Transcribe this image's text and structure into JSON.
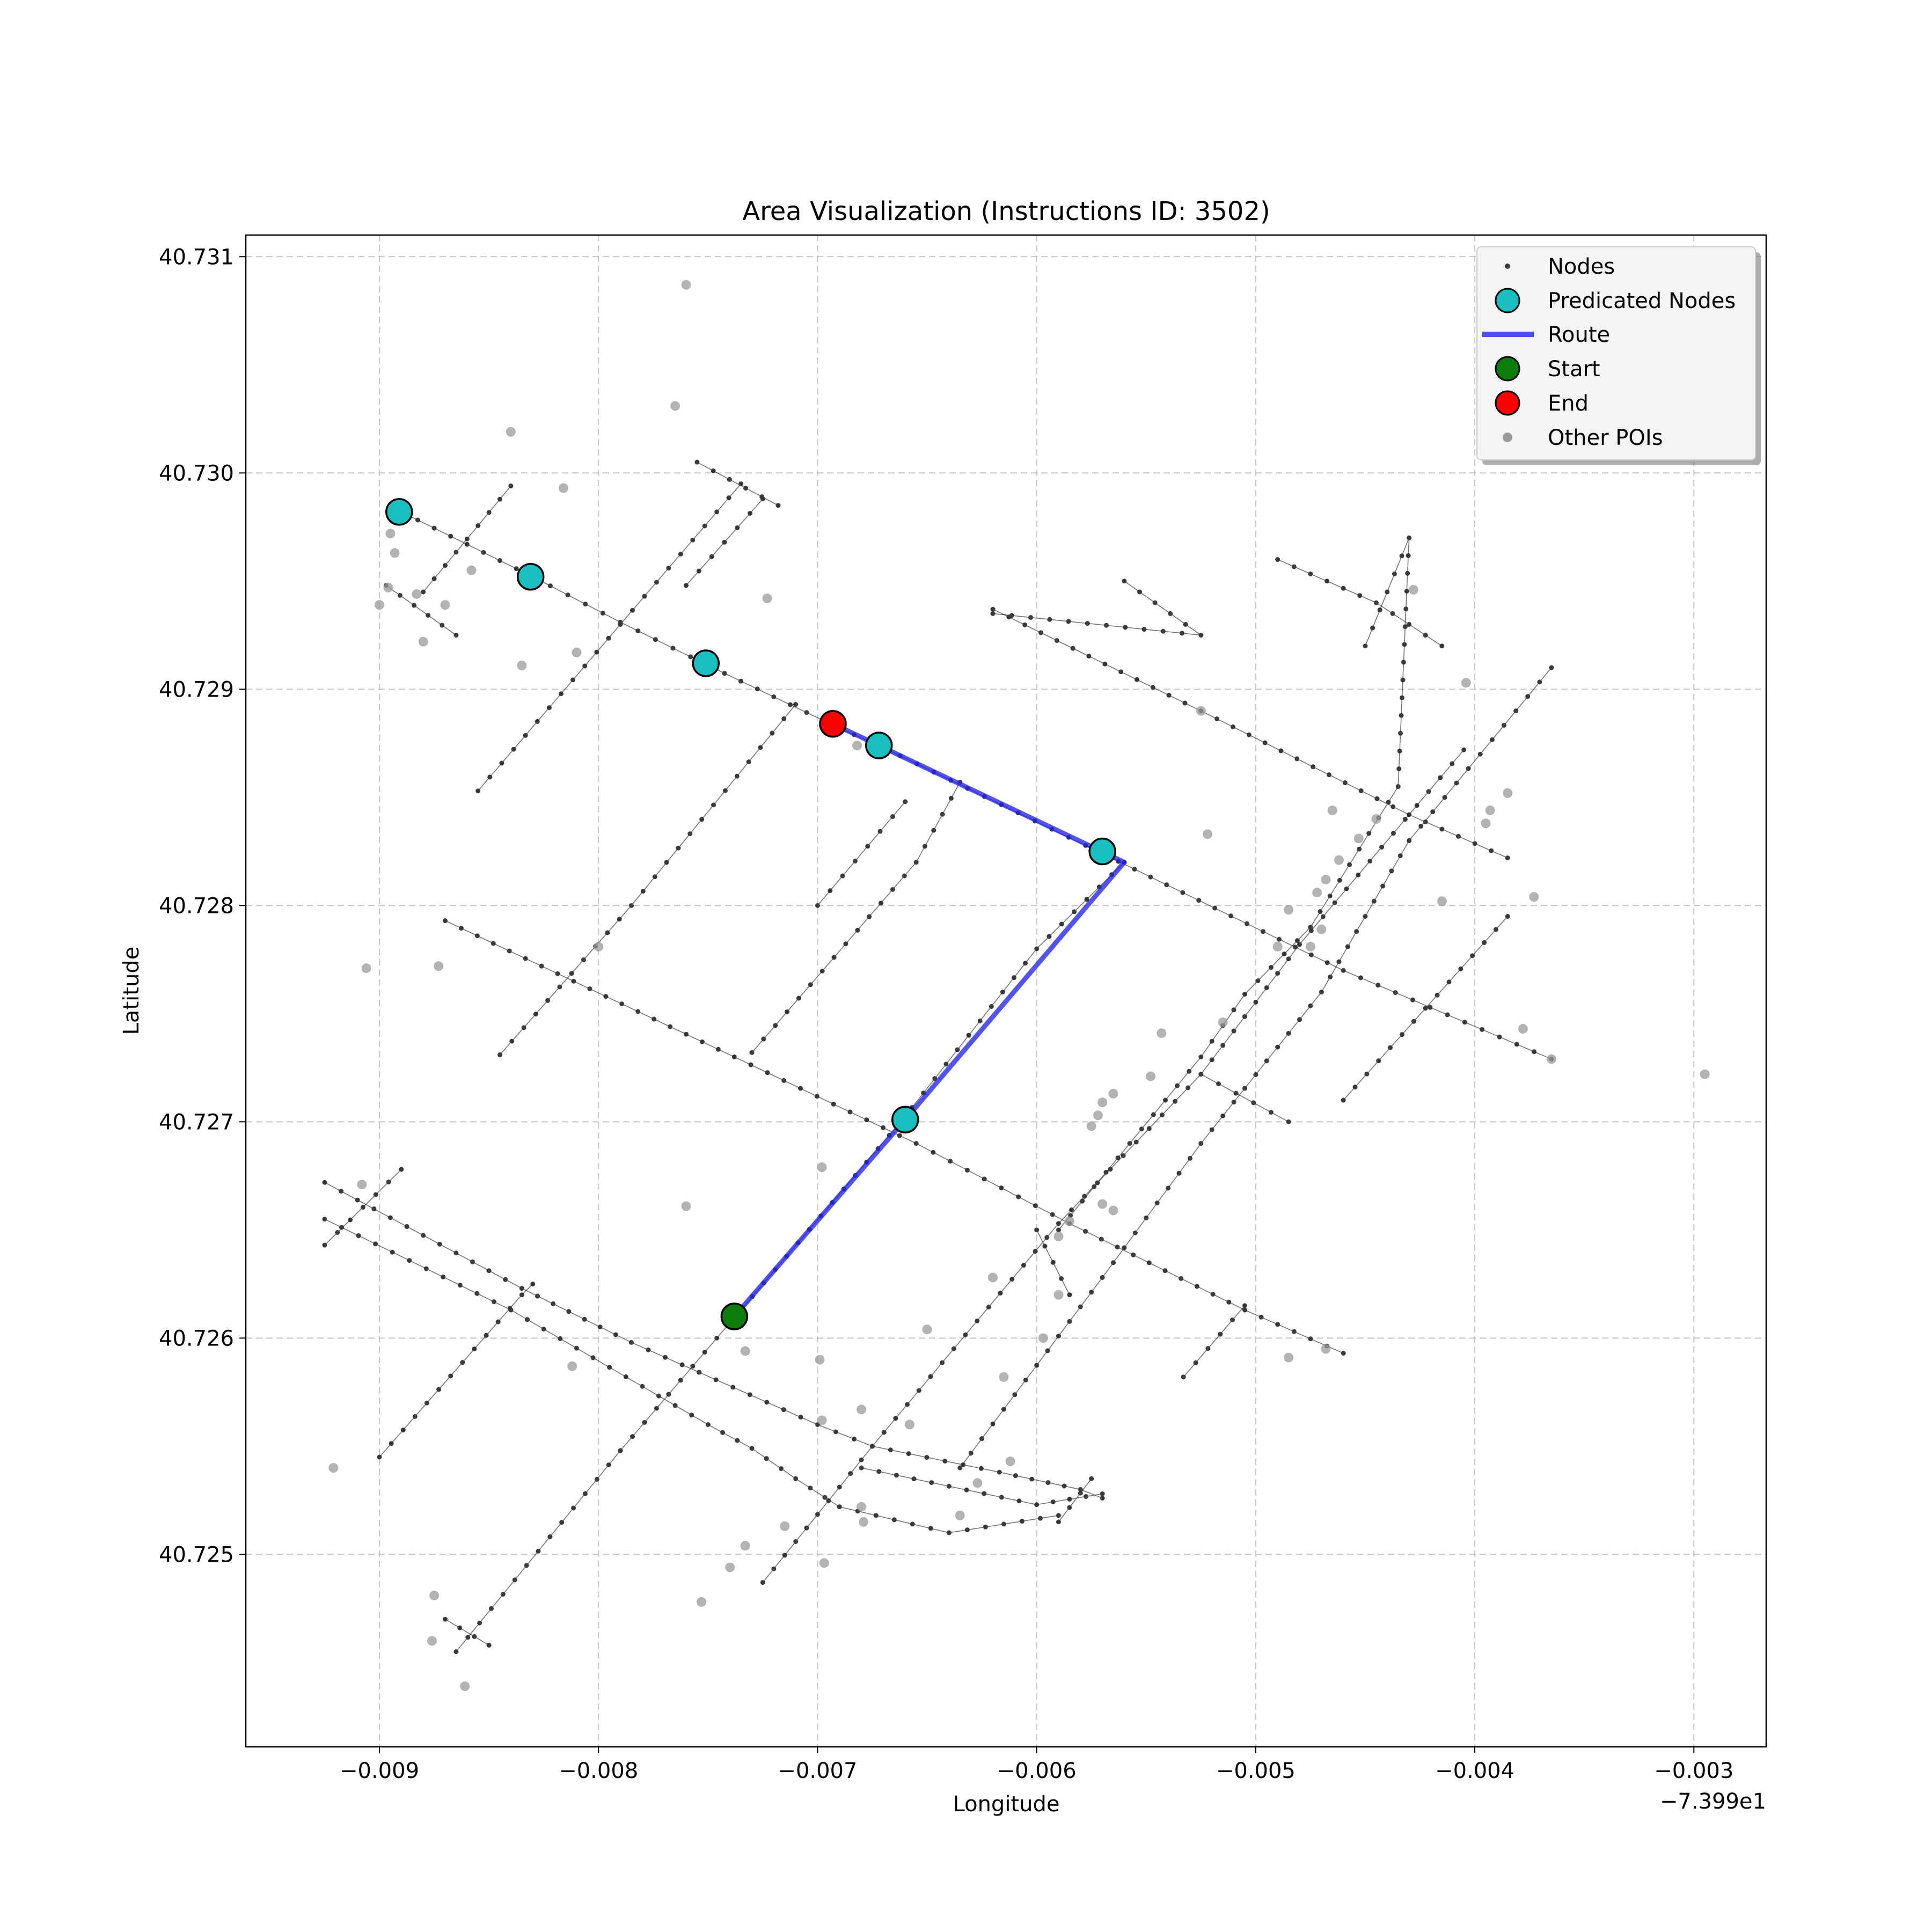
{
  "chart_data": {
    "type": "scatter",
    "title": "Area Visualization (Instructions ID: 3502)",
    "xlabel": "Longitude",
    "ylabel": "Latitude",
    "x_offset_label": "−7.399e1",
    "xlim": [
      -0.00961,
      -0.00267
    ],
    "ylim": [
      40.72411,
      40.7311
    ],
    "x_ticks": [
      -0.009,
      -0.008,
      -0.007,
      -0.006,
      -0.005,
      -0.004,
      -0.003
    ],
    "x_tick_labels": [
      "−0.009",
      "−0.008",
      "−0.007",
      "−0.006",
      "−0.005",
      "−0.004",
      "−0.003"
    ],
    "y_ticks": [
      40.725,
      40.726,
      40.727,
      40.728,
      40.729,
      40.73,
      40.731
    ],
    "y_tick_labels": [
      "40.725",
      "40.726",
      "40.727",
      "40.728",
      "40.729",
      "40.730",
      "40.731"
    ],
    "grid": true,
    "legend_position": "top-right",
    "legend": [
      "Nodes",
      "Predicated Nodes",
      "Route",
      "Start",
      "End",
      "Other POIs"
    ],
    "colors": {
      "nodes": "#3a3a3a",
      "predicated": "#17bfbf",
      "route": "#2222ee",
      "start": "#0a7d0a",
      "end": "#ff0000",
      "poi": "#9a9a9a"
    },
    "streets": [
      [
        [
          -0.0089,
          40.72982
        ],
        [
          -0.0083,
          40.72952
        ],
        [
          -0.0079,
          40.72931
        ],
        [
          -0.0075,
          40.72911
        ],
        [
          -0.0069,
          40.72882
        ],
        [
          -0.0067,
          40.72873
        ],
        [
          -0.0057,
          40.72824
        ],
        [
          -0.0046,
          40.7277
        ],
        [
          -0.00365,
          40.72729
        ]
      ],
      [
        [
          -0.0087,
          40.72793
        ],
        [
          -0.00738,
          40.7273
        ],
        [
          -0.00655,
          40.7269
        ],
        [
          -0.00585,
          40.72653
        ],
        [
          -0.00505,
          40.72613
        ],
        [
          -0.0046,
          40.72593
        ]
      ],
      [
        [
          -0.00925,
          40.72672
        ],
        [
          -0.00835,
          40.72623
        ],
        [
          -0.00785,
          40.72598
        ],
        [
          -0.007,
          40.7256
        ],
        [
          -0.00675,
          40.7255
        ],
        [
          -0.00617,
          40.72538
        ],
        [
          -0.0058,
          40.7253
        ],
        [
          -0.0057,
          40.72526
        ]
      ],
      [
        [
          -0.00925,
          40.72655
        ],
        [
          -0.0084,
          40.72613
        ],
        [
          -0.0075,
          40.7256
        ],
        [
          -0.0073,
          40.72549
        ],
        [
          -0.0071,
          40.72535
        ],
        [
          -0.0069,
          40.72522
        ],
        [
          -0.0064,
          40.7251
        ],
        [
          -0.0059,
          40.72518
        ]
      ],
      [
        [
          -0.0068,
          40.7254
        ],
        [
          -0.006,
          40.72523
        ],
        [
          -0.0057,
          40.72528
        ]
      ],
      [
        [
          -0.0062,
          40.72937
        ],
        [
          -0.00525,
          40.7289
        ],
        [
          -0.0043,
          40.72842
        ],
        [
          -0.00385,
          40.72822
        ]
      ],
      [
        [
          -0.0049,
          40.7296
        ],
        [
          -0.00445,
          40.7294
        ],
        [
          -0.00415,
          40.7292
        ]
      ],
      [
        [
          -0.00755,
          40.73005
        ],
        [
          -0.00718,
          40.72985
        ]
      ],
      [
        [
          -0.00525,
          40.72722
        ],
        [
          -0.00485,
          40.727
        ]
      ],
      [
        [
          -0.00925,
          40.72643
        ],
        [
          -0.0089,
          40.72678
        ]
      ],
      [
        [
          -0.0087,
          40.7247
        ],
        [
          -0.0085,
          40.72458
        ]
      ],
      [
        [
          -0.0056,
          40.7282
        ],
        [
          -0.006,
          40.7278
        ],
        [
          -0.00662,
          40.727
        ],
        [
          -0.00735,
          40.72613
        ],
        [
          -0.0079,
          40.72548
        ],
        [
          -0.00865,
          40.72455
        ]
      ],
      [
        [
          -0.00855,
          40.72853
        ],
        [
          -0.0079,
          40.7293
        ],
        [
          -0.00735,
          40.72995
        ]
      ],
      [
        [
          -0.00845,
          40.72731
        ],
        [
          -0.00785,
          40.728
        ],
        [
          -0.0071,
          40.72893
        ]
      ],
      [
        [
          -0.0073,
          40.72732
        ],
        [
          -0.00655,
          40.7282
        ],
        [
          -0.00635,
          40.72857
        ]
      ],
      [
        [
          -0.00725,
          40.72487
        ],
        [
          -0.00675,
          40.7255
        ],
        [
          -0.0059,
          40.72653
        ],
        [
          -0.00525,
          40.72722
        ],
        [
          -0.0048,
          40.72782
        ],
        [
          -0.00405,
          40.72872
        ]
      ],
      [
        [
          -0.00635,
          40.7254
        ],
        [
          -0.0057,
          40.72628
        ],
        [
          -0.00525,
          40.7269
        ],
        [
          -0.0047,
          40.7276
        ],
        [
          -0.0043,
          40.7283
        ],
        [
          -0.00365,
          40.7291
        ]
      ],
      [
        [
          -0.0046,
          40.7271
        ],
        [
          -0.00385,
          40.72795
        ]
      ],
      [
        [
          -0.0059,
          40.7265
        ],
        [
          -0.00525,
          40.7273
        ],
        [
          -0.00505,
          40.72759
        ],
        [
          -0.00475,
          40.7279
        ],
        [
          -0.00435,
          40.72855
        ],
        [
          -0.0043,
          40.7297
        ]
      ],
      [
        [
          -0.00533,
          40.72582
        ],
        [
          -0.00505,
          40.72615
        ]
      ],
      [
        [
          -0.009,
          40.72545
        ],
        [
          -0.00835,
          40.7262
        ],
        [
          -0.0083,
          40.72625
        ]
      ],
      [
        [
          -0.0088,
          40.72945
        ],
        [
          -0.0084,
          40.72994
        ]
      ],
      [
        [
          -0.00865,
          40.72925
        ],
        [
          -0.00897,
          40.72948
        ]
      ],
      [
        [
          -0.0056,
          40.7295
        ],
        [
          -0.00525,
          40.72925
        ],
        [
          -0.0062,
          40.72935
        ]
      ],
      [
        [
          -0.0076,
          40.72948
        ],
        [
          -0.00725,
          40.72988
        ]
      ],
      [
        [
          -0.007,
          40.728
        ],
        [
          -0.0066,
          40.72848
        ]
      ],
      [
        [
          -0.0059,
          40.72515
        ],
        [
          -0.00575,
          40.72535
        ]
      ],
      [
        [
          -0.006,
          40.7265
        ],
        [
          -0.00585,
          40.7262
        ]
      ],
      [
        [
          -0.0045,
          40.7292
        ],
        [
          -0.0043,
          40.7297
        ]
      ]
    ],
    "predicated_nodes": [
      {
        "x": -0.00891,
        "y": 40.72982
      },
      {
        "x": -0.00831,
        "y": 40.72952
      },
      {
        "x": -0.00751,
        "y": 40.72912
      },
      {
        "x": -0.00672,
        "y": 40.72874
      },
      {
        "x": -0.0057,
        "y": 40.72825
      },
      {
        "x": -0.0066,
        "y": 40.72701
      }
    ],
    "route": [
      {
        "x": -0.00693,
        "y": 40.72884
      },
      {
        "x": -0.00672,
        "y": 40.72874
      },
      {
        "x": -0.0056,
        "y": 40.7282
      },
      {
        "x": -0.0066,
        "y": 40.72701
      },
      {
        "x": -0.00738,
        "y": 40.7261
      }
    ],
    "start": {
      "x": -0.00738,
      "y": 40.7261
    },
    "end": {
      "x": -0.00693,
      "y": 40.72884
    },
    "other_pois": [
      {
        "x": -0.0076,
        "y": 40.73087
      },
      {
        "x": -0.00765,
        "y": 40.73031
      },
      {
        "x": -0.0084,
        "y": 40.73019
      },
      {
        "x": -0.00816,
        "y": 40.72993
      },
      {
        "x": -0.00895,
        "y": 40.72972
      },
      {
        "x": -0.00893,
        "y": 40.72963
      },
      {
        "x": -0.00858,
        "y": 40.72955
      },
      {
        "x": -0.00896,
        "y": 40.72947
      },
      {
        "x": -0.00883,
        "y": 40.72944
      },
      {
        "x": -0.009,
        "y": 40.72939
      },
      {
        "x": -0.0087,
        "y": 40.72939
      },
      {
        "x": -0.0088,
        "y": 40.72922
      },
      {
        "x": -0.0081,
        "y": 40.72917
      },
      {
        "x": -0.00835,
        "y": 40.72911
      },
      {
        "x": -0.00723,
        "y": 40.72942
      },
      {
        "x": -0.00682,
        "y": 40.72874
      },
      {
        "x": -0.00428,
        "y": 40.72946
      },
      {
        "x": -0.00404,
        "y": 40.72903
      },
      {
        "x": -0.00525,
        "y": 40.7289
      },
      {
        "x": -0.00522,
        "y": 40.72833
      },
      {
        "x": -0.00465,
        "y": 40.72844
      },
      {
        "x": -0.00445,
        "y": 40.7284
      },
      {
        "x": -0.00453,
        "y": 40.72831
      },
      {
        "x": -0.00462,
        "y": 40.72821
      },
      {
        "x": -0.00468,
        "y": 40.72812
      },
      {
        "x": -0.00472,
        "y": 40.72806
      },
      {
        "x": -0.00485,
        "y": 40.72798
      },
      {
        "x": -0.0047,
        "y": 40.72789
      },
      {
        "x": -0.0049,
        "y": 40.72781
      },
      {
        "x": -0.00475,
        "y": 40.72781
      },
      {
        "x": -0.00385,
        "y": 40.72852
      },
      {
        "x": -0.00393,
        "y": 40.72844
      },
      {
        "x": -0.00395,
        "y": 40.72838
      },
      {
        "x": -0.00415,
        "y": 40.72802
      },
      {
        "x": -0.00373,
        "y": 40.72804
      },
      {
        "x": -0.00378,
        "y": 40.72743
      },
      {
        "x": -0.00365,
        "y": 40.72729
      },
      {
        "x": -0.00295,
        "y": 40.72722
      },
      {
        "x": -0.00515,
        "y": 40.72746
      },
      {
        "x": -0.00543,
        "y": 40.72741
      },
      {
        "x": -0.00548,
        "y": 40.72721
      },
      {
        "x": -0.00565,
        "y": 40.72713
      },
      {
        "x": -0.0057,
        "y": 40.72709
      },
      {
        "x": -0.00572,
        "y": 40.72703
      },
      {
        "x": -0.00575,
        "y": 40.72698
      },
      {
        "x": -0.00906,
        "y": 40.72771
      },
      {
        "x": -0.00873,
        "y": 40.72772
      },
      {
        "x": -0.008,
        "y": 40.72781
      },
      {
        "x": -0.00908,
        "y": 40.72671
      },
      {
        "x": -0.00698,
        "y": 40.72679
      },
      {
        "x": -0.0076,
        "y": 40.72661
      },
      {
        "x": -0.0057,
        "y": 40.72662
      },
      {
        "x": -0.00565,
        "y": 40.72659
      },
      {
        "x": -0.00585,
        "y": 40.72654
      },
      {
        "x": -0.0059,
        "y": 40.72647
      },
      {
        "x": -0.0062,
        "y": 40.72628
      },
      {
        "x": -0.0059,
        "y": 40.7262
      },
      {
        "x": -0.0065,
        "y": 40.72604
      },
      {
        "x": -0.00597,
        "y": 40.726
      },
      {
        "x": -0.00733,
        "y": 40.72594
      },
      {
        "x": -0.00699,
        "y": 40.7259
      },
      {
        "x": -0.00812,
        "y": 40.72587
      },
      {
        "x": -0.00615,
        "y": 40.72582
      },
      {
        "x": -0.00485,
        "y": 40.72591
      },
      {
        "x": -0.00468,
        "y": 40.72595
      },
      {
        "x": -0.0068,
        "y": 40.72567
      },
      {
        "x": -0.00698,
        "y": 40.72562
      },
      {
        "x": -0.00658,
        "y": 40.7256
      },
      {
        "x": -0.00612,
        "y": 40.72543
      },
      {
        "x": -0.00627,
        "y": 40.72533
      },
      {
        "x": -0.00921,
        "y": 40.7254
      },
      {
        "x": -0.0068,
        "y": 40.72522
      },
      {
        "x": -0.00679,
        "y": 40.72515
      },
      {
        "x": -0.00635,
        "y": 40.72518
      },
      {
        "x": -0.00715,
        "y": 40.72513
      },
      {
        "x": -0.00733,
        "y": 40.72504
      },
      {
        "x": -0.0074,
        "y": 40.72494
      },
      {
        "x": -0.00697,
        "y": 40.72496
      },
      {
        "x": -0.00875,
        "y": 40.72481
      },
      {
        "x": -0.00753,
        "y": 40.72478
      },
      {
        "x": -0.00876,
        "y": 40.7246
      },
      {
        "x": -0.00861,
        "y": 40.72439
      }
    ]
  }
}
